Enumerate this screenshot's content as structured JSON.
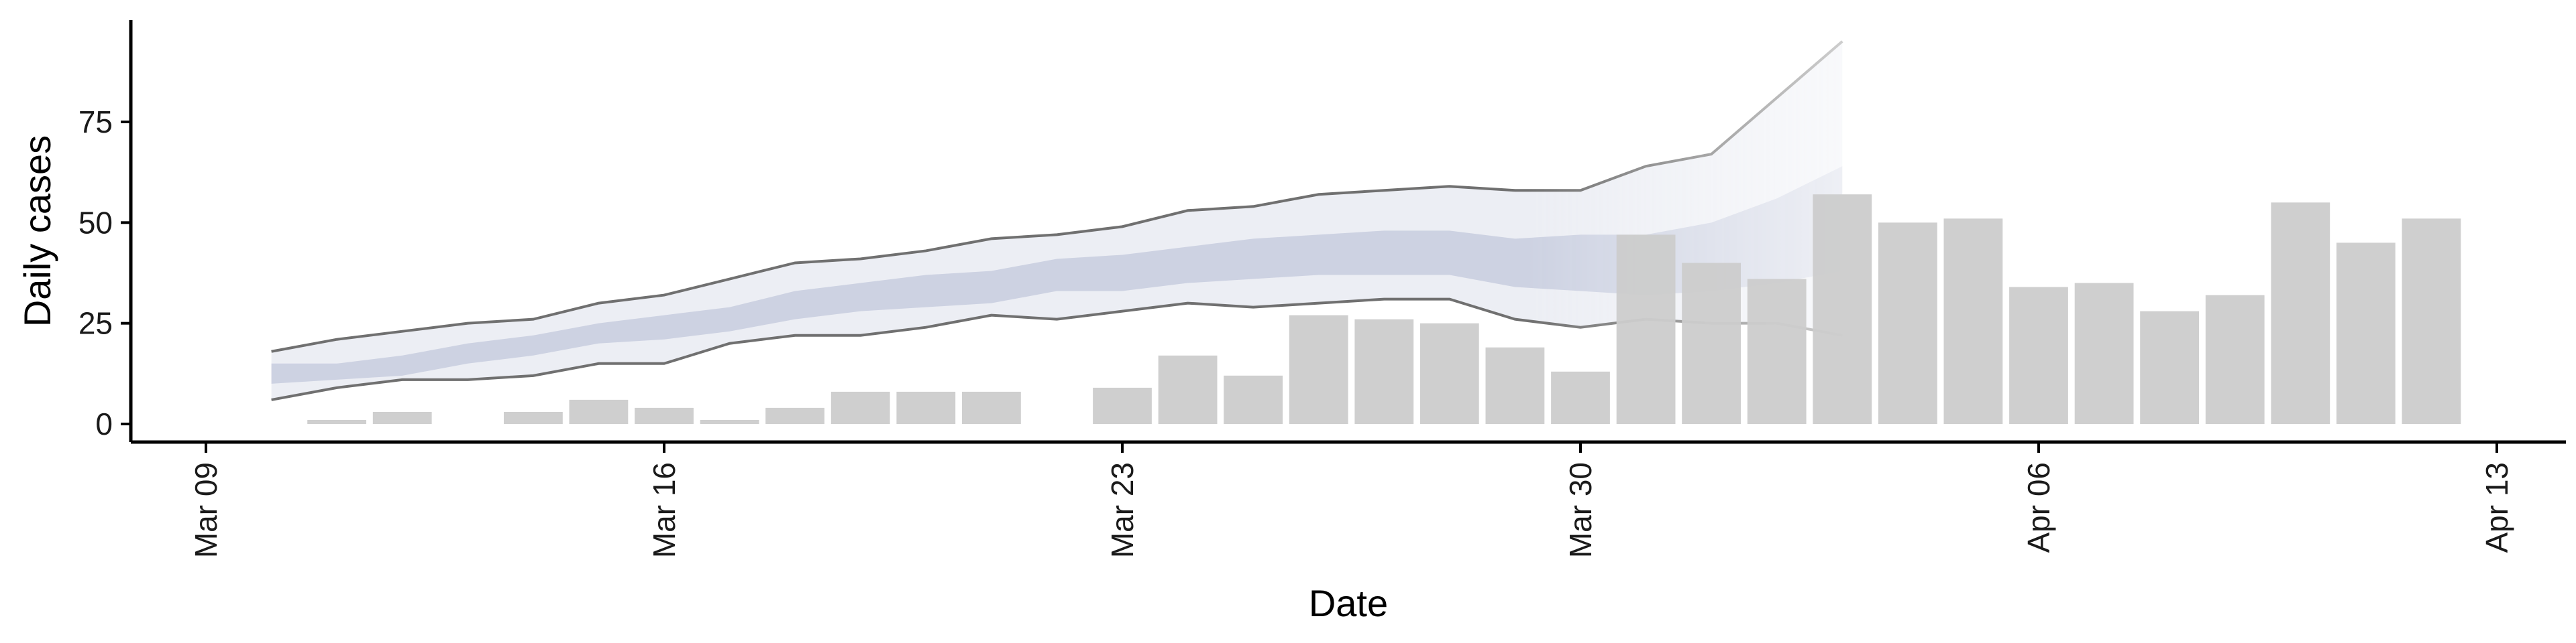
{
  "chart_data": {
    "type": "bar",
    "title": "",
    "xlabel": "Date",
    "ylabel": "Daily cases",
    "x_range": [
      "2020-03-08",
      "2020-04-13"
    ],
    "ylim": [
      -4,
      100
    ],
    "y_ticks": [
      0,
      25,
      50,
      75
    ],
    "x_ticks": [
      {
        "date": "2020-03-09",
        "label": "Mar 09"
      },
      {
        "date": "2020-03-16",
        "label": "Mar 16"
      },
      {
        "date": "2020-03-23",
        "label": "Mar 23"
      },
      {
        "date": "2020-03-30",
        "label": "Mar 30"
      },
      {
        "date": "2020-04-06",
        "label": "Apr 06"
      },
      {
        "date": "2020-04-13",
        "label": "Apr 13"
      }
    ],
    "grid": false,
    "legend": "none",
    "colors": {
      "bars": "#cccccc",
      "band_outer": "#e6e8f0",
      "band_inner": "#c3c8dc",
      "band_line": "#707070"
    },
    "bars": {
      "dates": [
        "2020-03-11",
        "2020-03-12",
        "2020-03-13",
        "2020-03-14",
        "2020-03-15",
        "2020-03-16",
        "2020-03-17",
        "2020-03-18",
        "2020-03-19",
        "2020-03-20",
        "2020-03-21",
        "2020-03-22",
        "2020-03-23",
        "2020-03-24",
        "2020-03-25",
        "2020-03-26",
        "2020-03-27",
        "2020-03-28",
        "2020-03-29",
        "2020-03-30",
        "2020-03-31",
        "2020-04-01",
        "2020-04-02",
        "2020-04-03",
        "2020-04-04",
        "2020-04-05",
        "2020-04-06",
        "2020-04-07",
        "2020-04-08",
        "2020-04-09",
        "2020-04-10",
        "2020-04-11",
        "2020-04-12"
      ],
      "values": [
        1,
        3,
        0,
        3,
        6,
        4,
        1,
        4,
        8,
        8,
        8,
        0,
        9,
        17,
        12,
        27,
        26,
        25,
        19,
        13,
        47,
        40,
        36,
        57,
        50,
        51,
        34,
        35,
        28,
        32,
        55,
        45,
        51
      ]
    },
    "estimate": {
      "dates": [
        "2020-03-10",
        "2020-03-11",
        "2020-03-12",
        "2020-03-13",
        "2020-03-14",
        "2020-03-15",
        "2020-03-16",
        "2020-03-17",
        "2020-03-18",
        "2020-03-19",
        "2020-03-20",
        "2020-03-21",
        "2020-03-22",
        "2020-03-23",
        "2020-03-24",
        "2020-03-25",
        "2020-03-26",
        "2020-03-27",
        "2020-03-28",
        "2020-03-29",
        "2020-03-30",
        "2020-03-31",
        "2020-04-01",
        "2020-04-02",
        "2020-04-03"
      ],
      "outer_lower": [
        6,
        9,
        11,
        11,
        12,
        15,
        15,
        20,
        22,
        22,
        24,
        27,
        26,
        28,
        30,
        29,
        30,
        31,
        31,
        26,
        24,
        26,
        25,
        25,
        22
      ],
      "outer_upper": [
        18,
        21,
        23,
        25,
        26,
        30,
        32,
        36,
        40,
        41,
        43,
        46,
        47,
        49,
        53,
        54,
        57,
        58,
        59,
        58,
        58,
        64,
        67,
        81,
        95
      ],
      "inner_lower": [
        10,
        11,
        12,
        15,
        17,
        20,
        21,
        23,
        26,
        28,
        29,
        30,
        33,
        33,
        35,
        36,
        37,
        37,
        37,
        34,
        33,
        32,
        33,
        35,
        38
      ],
      "inner_upper": [
        15,
        15,
        17,
        20,
        22,
        25,
        27,
        29,
        33,
        35,
        37,
        38,
        41,
        42,
        44,
        46,
        47,
        48,
        48,
        46,
        47,
        47,
        50,
        56,
        64
      ]
    }
  }
}
